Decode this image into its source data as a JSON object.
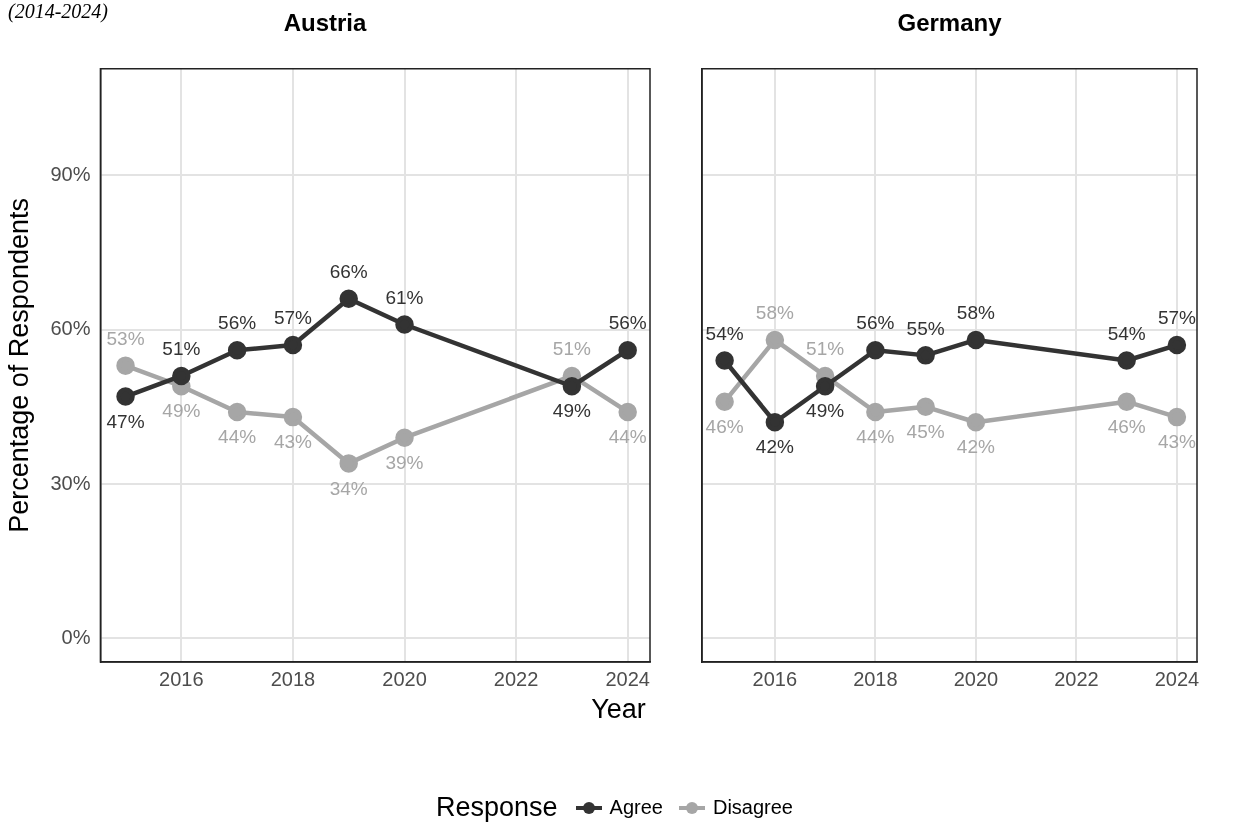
{
  "chart_data": [
    {
      "type": "line",
      "title": "Austria",
      "subtitle": "(2014-2024)",
      "xlabel": "Year",
      "ylabel": "Percentage of Respondents",
      "legend_title": "Response",
      "legend": "bottom",
      "grid": true,
      "marker": "circle",
      "x": [
        2015,
        2016,
        2017,
        2018,
        2019,
        2020,
        2023,
        2024
      ],
      "xlim": [
        2014.55,
        2024.4
      ],
      "xticks": [
        2016,
        2018,
        2020,
        2022,
        2024
      ],
      "ylim": [
        -4.6,
        110.7
      ],
      "yticks": [
        {
          "value": 0,
          "label": "0%"
        },
        {
          "value": 30,
          "label": "30%"
        },
        {
          "value": 60,
          "label": "60%"
        },
        {
          "value": 90,
          "label": "90%"
        }
      ],
      "series": [
        {
          "name": "Agree",
          "color": "#333333",
          "values": [
            47,
            51,
            56,
            57,
            66,
            61,
            49,
            56
          ],
          "value_labels": [
            "47%",
            "51%",
            "56%",
            "57%",
            "66%",
            "61%",
            "49%",
            "56%"
          ]
        },
        {
          "name": "Disagree",
          "color": "#a6a6a6",
          "values": [
            53,
            49,
            44,
            43,
            34,
            39,
            51,
            44
          ],
          "value_labels": [
            "53%",
            "49%",
            "44%",
            "43%",
            "34%",
            "39%",
            "51%",
            "44%"
          ]
        }
      ]
    },
    {
      "type": "line",
      "title": "Germany",
      "grid": true,
      "marker": "circle",
      "tick_labels": "x",
      "x": [
        2015,
        2016,
        2017,
        2018,
        2019,
        2020,
        2023,
        2024
      ],
      "xlim": [
        2014.55,
        2024.4
      ],
      "xticks": [
        2016,
        2018,
        2020,
        2022,
        2024
      ],
      "ylim": [
        -4.6,
        110.7
      ],
      "yticks": [
        0,
        30,
        60,
        90
      ],
      "series": [
        {
          "color": "#333333",
          "values": [
            54,
            42,
            49,
            56,
            55,
            58,
            54,
            57
          ],
          "value_labels": [
            "54%",
            "42%",
            "49%",
            "56%",
            "55%",
            "58%",
            "54%",
            "57%"
          ]
        },
        {
          "color": "#a6a6a6",
          "values": [
            46,
            58,
            51,
            44,
            45,
            42,
            46,
            43
          ],
          "value_labels": [
            "46%",
            "58%",
            "51%",
            "44%",
            "45%",
            "42%",
            "46%",
            "43%"
          ]
        }
      ]
    }
  ]
}
